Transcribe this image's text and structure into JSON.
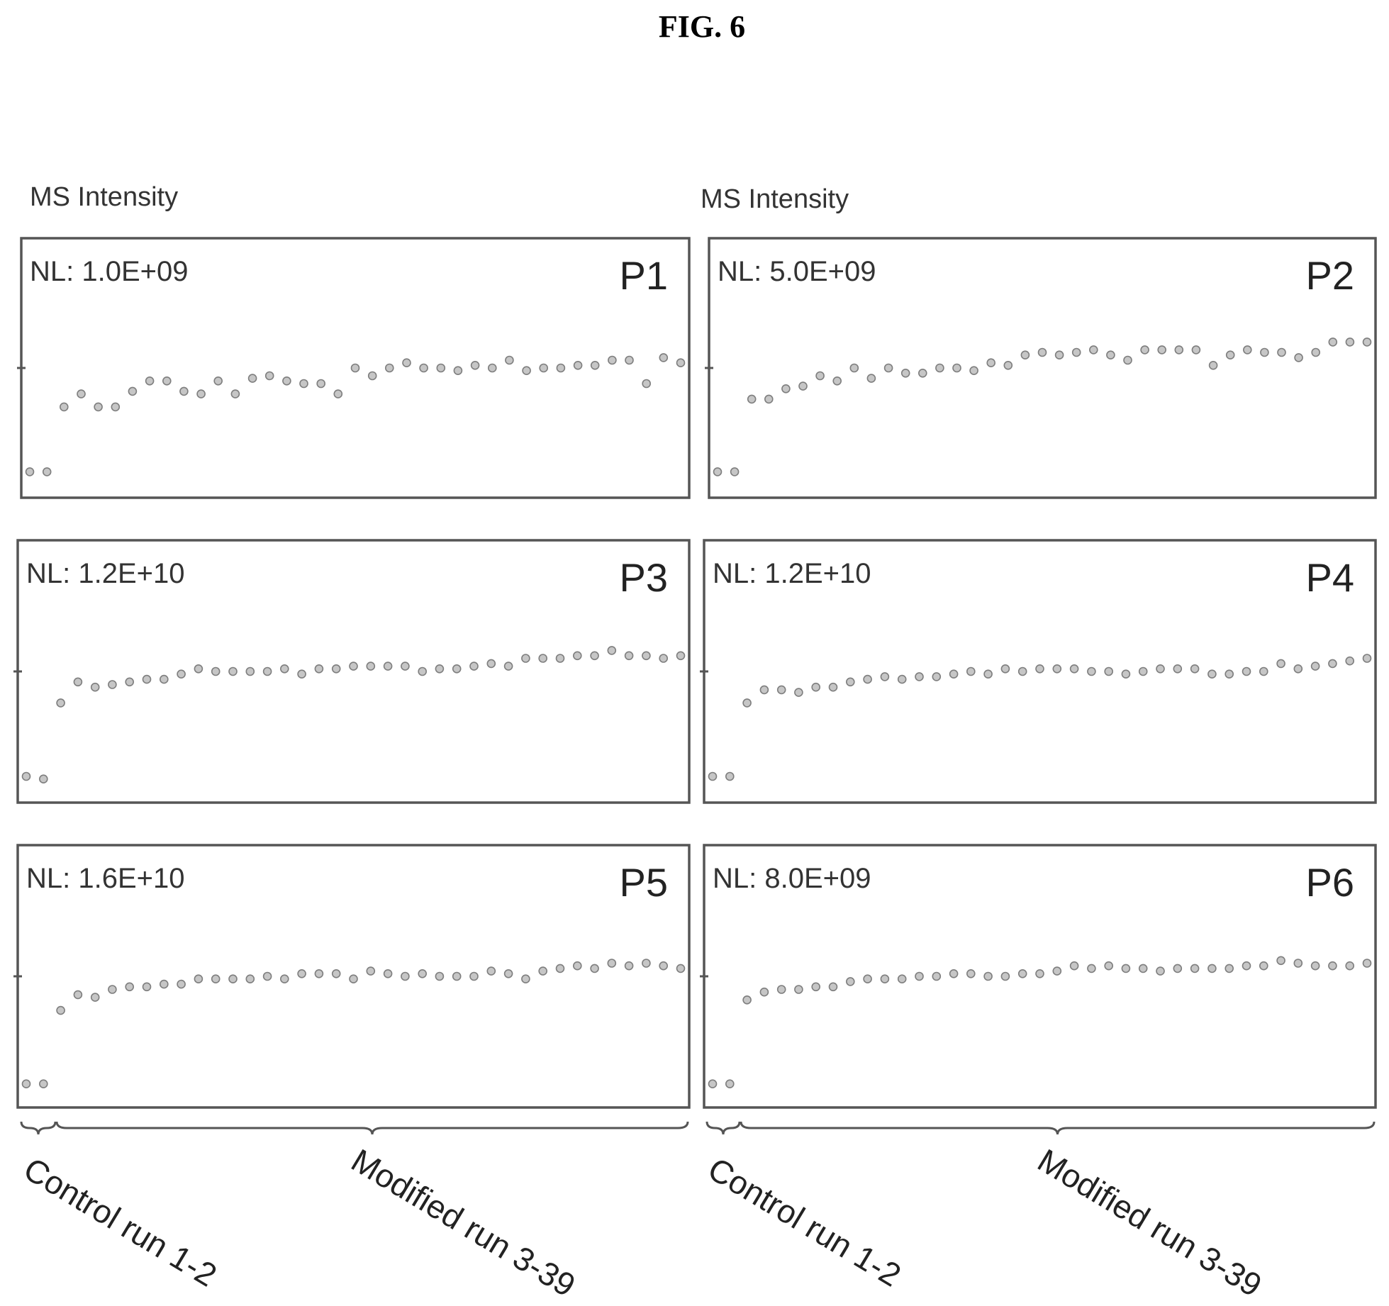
{
  "figure": {
    "title": "FIG. 6"
  },
  "axis_titles": {
    "left": "MS Intensity",
    "right": "MS Intensity"
  },
  "bracket_labels": {
    "left": {
      "control": "Control run 1-2",
      "modified": "Modified run 3-39"
    },
    "right": {
      "control": "Control run 1-2",
      "modified": "Modified run 3-39"
    }
  },
  "chart_data": [
    {
      "type": "scatter",
      "panel": "P1",
      "nl": "NL: 1.0E+09",
      "x": [
        1,
        2,
        3,
        4,
        5,
        6,
        7,
        8,
        9,
        10,
        11,
        12,
        13,
        14,
        15,
        16,
        17,
        18,
        19,
        20,
        21,
        22,
        23,
        24,
        25,
        26,
        27,
        28,
        29,
        30,
        31,
        32,
        33,
        34,
        35,
        36,
        37,
        38,
        39
      ],
      "values": [
        0.1,
        0.1,
        0.35,
        0.4,
        0.35,
        0.35,
        0.41,
        0.45,
        0.45,
        0.41,
        0.4,
        0.45,
        0.4,
        0.46,
        0.47,
        0.45,
        0.44,
        0.44,
        0.4,
        0.5,
        0.47,
        0.5,
        0.52,
        0.5,
        0.5,
        0.49,
        0.51,
        0.5,
        0.53,
        0.49,
        0.5,
        0.5,
        0.51,
        0.51,
        0.53,
        0.53,
        0.44,
        0.54,
        0.52
      ],
      "ytick": 0.5
    },
    {
      "type": "scatter",
      "panel": "P2",
      "nl": "NL: 5.0E+09",
      "x": [
        1,
        2,
        3,
        4,
        5,
        6,
        7,
        8,
        9,
        10,
        11,
        12,
        13,
        14,
        15,
        16,
        17,
        18,
        19,
        20,
        21,
        22,
        23,
        24,
        25,
        26,
        27,
        28,
        29,
        30,
        31,
        32,
        33,
        34,
        35,
        36,
        37,
        38,
        39
      ],
      "values": [
        0.1,
        0.1,
        0.38,
        0.38,
        0.42,
        0.43,
        0.47,
        0.45,
        0.5,
        0.46,
        0.5,
        0.48,
        0.48,
        0.5,
        0.5,
        0.49,
        0.52,
        0.51,
        0.55,
        0.56,
        0.55,
        0.56,
        0.57,
        0.55,
        0.53,
        0.57,
        0.57,
        0.57,
        0.57,
        0.51,
        0.55,
        0.57,
        0.56,
        0.56,
        0.54,
        0.56,
        0.6,
        0.6,
        0.6
      ],
      "ytick": 0.5
    },
    {
      "type": "scatter",
      "panel": "P3",
      "nl": "NL: 1.2E+10",
      "x": [
        1,
        2,
        3,
        4,
        5,
        6,
        7,
        8,
        9,
        10,
        11,
        12,
        13,
        14,
        15,
        16,
        17,
        18,
        19,
        20,
        21,
        22,
        23,
        24,
        25,
        26,
        27,
        28,
        29,
        30,
        31,
        32,
        33,
        34,
        35,
        36,
        37,
        38,
        39
      ],
      "values": [
        0.1,
        0.09,
        0.38,
        0.46,
        0.44,
        0.45,
        0.46,
        0.47,
        0.47,
        0.49,
        0.51,
        0.5,
        0.5,
        0.5,
        0.5,
        0.51,
        0.49,
        0.51,
        0.51,
        0.52,
        0.52,
        0.52,
        0.52,
        0.5,
        0.51,
        0.51,
        0.52,
        0.53,
        0.52,
        0.55,
        0.55,
        0.55,
        0.56,
        0.56,
        0.58,
        0.56,
        0.56,
        0.55,
        0.56
      ],
      "ytick": 0.5
    },
    {
      "type": "scatter",
      "panel": "P4",
      "nl": "NL: 1.2E+10",
      "x": [
        1,
        2,
        3,
        4,
        5,
        6,
        7,
        8,
        9,
        10,
        11,
        12,
        13,
        14,
        15,
        16,
        17,
        18,
        19,
        20,
        21,
        22,
        23,
        24,
        25,
        26,
        27,
        28,
        29,
        30,
        31,
        32,
        33,
        34,
        35,
        36,
        37,
        38,
        39
      ],
      "values": [
        0.1,
        0.1,
        0.38,
        0.43,
        0.43,
        0.42,
        0.44,
        0.44,
        0.46,
        0.47,
        0.48,
        0.47,
        0.48,
        0.48,
        0.49,
        0.5,
        0.49,
        0.51,
        0.5,
        0.51,
        0.51,
        0.51,
        0.5,
        0.5,
        0.49,
        0.5,
        0.51,
        0.51,
        0.51,
        0.49,
        0.49,
        0.5,
        0.5,
        0.53,
        0.51,
        0.52,
        0.53,
        0.54,
        0.55
      ],
      "ytick": 0.5
    },
    {
      "type": "scatter",
      "panel": "P5",
      "nl": "NL: 1.6E+10",
      "x": [
        1,
        2,
        3,
        4,
        5,
        6,
        7,
        8,
        9,
        10,
        11,
        12,
        13,
        14,
        15,
        16,
        17,
        18,
        19,
        20,
        21,
        22,
        23,
        24,
        25,
        26,
        27,
        28,
        29,
        30,
        31,
        32,
        33,
        34,
        35,
        36,
        37,
        38,
        39
      ],
      "values": [
        0.09,
        0.09,
        0.37,
        0.43,
        0.42,
        0.45,
        0.46,
        0.46,
        0.47,
        0.47,
        0.49,
        0.49,
        0.49,
        0.49,
        0.5,
        0.49,
        0.51,
        0.51,
        0.51,
        0.49,
        0.52,
        0.51,
        0.5,
        0.51,
        0.5,
        0.5,
        0.5,
        0.52,
        0.51,
        0.49,
        0.52,
        0.53,
        0.54,
        0.53,
        0.55,
        0.54,
        0.55,
        0.54,
        0.53
      ],
      "ytick": 0.5
    },
    {
      "type": "scatter",
      "panel": "P6",
      "nl": "NL: 8.0E+09",
      "x": [
        1,
        2,
        3,
        4,
        5,
        6,
        7,
        8,
        9,
        10,
        11,
        12,
        13,
        14,
        15,
        16,
        17,
        18,
        19,
        20,
        21,
        22,
        23,
        24,
        25,
        26,
        27,
        28,
        29,
        30,
        31,
        32,
        33,
        34,
        35,
        36,
        37,
        38,
        39
      ],
      "values": [
        0.09,
        0.09,
        0.41,
        0.44,
        0.45,
        0.45,
        0.46,
        0.46,
        0.48,
        0.49,
        0.49,
        0.49,
        0.5,
        0.5,
        0.51,
        0.51,
        0.5,
        0.5,
        0.51,
        0.51,
        0.52,
        0.54,
        0.53,
        0.54,
        0.53,
        0.53,
        0.52,
        0.53,
        0.53,
        0.53,
        0.53,
        0.54,
        0.54,
        0.56,
        0.55,
        0.54,
        0.54,
        0.54,
        0.55
      ],
      "ytick": 0.5
    }
  ]
}
